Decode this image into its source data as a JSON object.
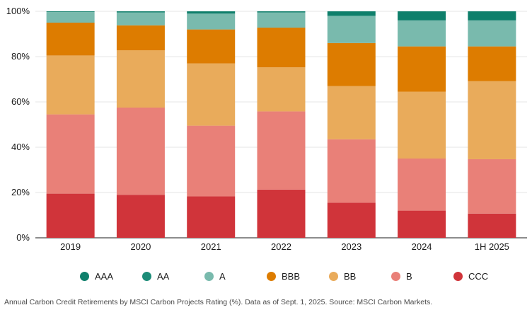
{
  "chart_data": {
    "type": "bar",
    "stacked": true,
    "categories": [
      "2019",
      "2020",
      "2021",
      "2022",
      "2023",
      "2024",
      "1H 2025"
    ],
    "ylim": [
      0,
      100
    ],
    "yticks": [
      "0%",
      "20%",
      "40%",
      "60%",
      "80%",
      "100%"
    ],
    "grid": true,
    "legend_position": "bottom",
    "series": [
      {
        "name": "CCC",
        "color": "#d0343a",
        "values": [
          19.5,
          19,
          18.3,
          21.3,
          15.5,
          12,
          10.7
        ]
      },
      {
        "name": "B",
        "color": "#e98078",
        "values": [
          35,
          38.5,
          31.2,
          34.5,
          28,
          23,
          24
        ]
      },
      {
        "name": "BB",
        "color": "#e9ab5b",
        "values": [
          26,
          25.3,
          27.5,
          19.5,
          23.5,
          29.5,
          34.5
        ]
      },
      {
        "name": "BBB",
        "color": "#dd7c00",
        "values": [
          14.5,
          11,
          15,
          17.5,
          19,
          20,
          15.3
        ]
      },
      {
        "name": "A",
        "color": "#79baad",
        "values": [
          4.7,
          5.7,
          7,
          6.7,
          12,
          11.5,
          11.5
        ]
      },
      {
        "name": "AA",
        "color": "#1c8c78",
        "values": [
          0,
          0,
          0,
          0,
          0,
          0,
          0
        ]
      },
      {
        "name": "AAA",
        "color": "#0e7f6b",
        "values": [
          0.3,
          0.5,
          1,
          0.5,
          2,
          4,
          4
        ]
      }
    ],
    "legend_order": [
      "AAA",
      "AA",
      "A",
      "BBB",
      "BB",
      "B",
      "CCC"
    ]
  },
  "caption": "Annual Carbon Credit Retirements by MSCI Carbon Projects Rating (%). Data as of Sept. 1, 2025. Source: MSCI Carbon Markets."
}
